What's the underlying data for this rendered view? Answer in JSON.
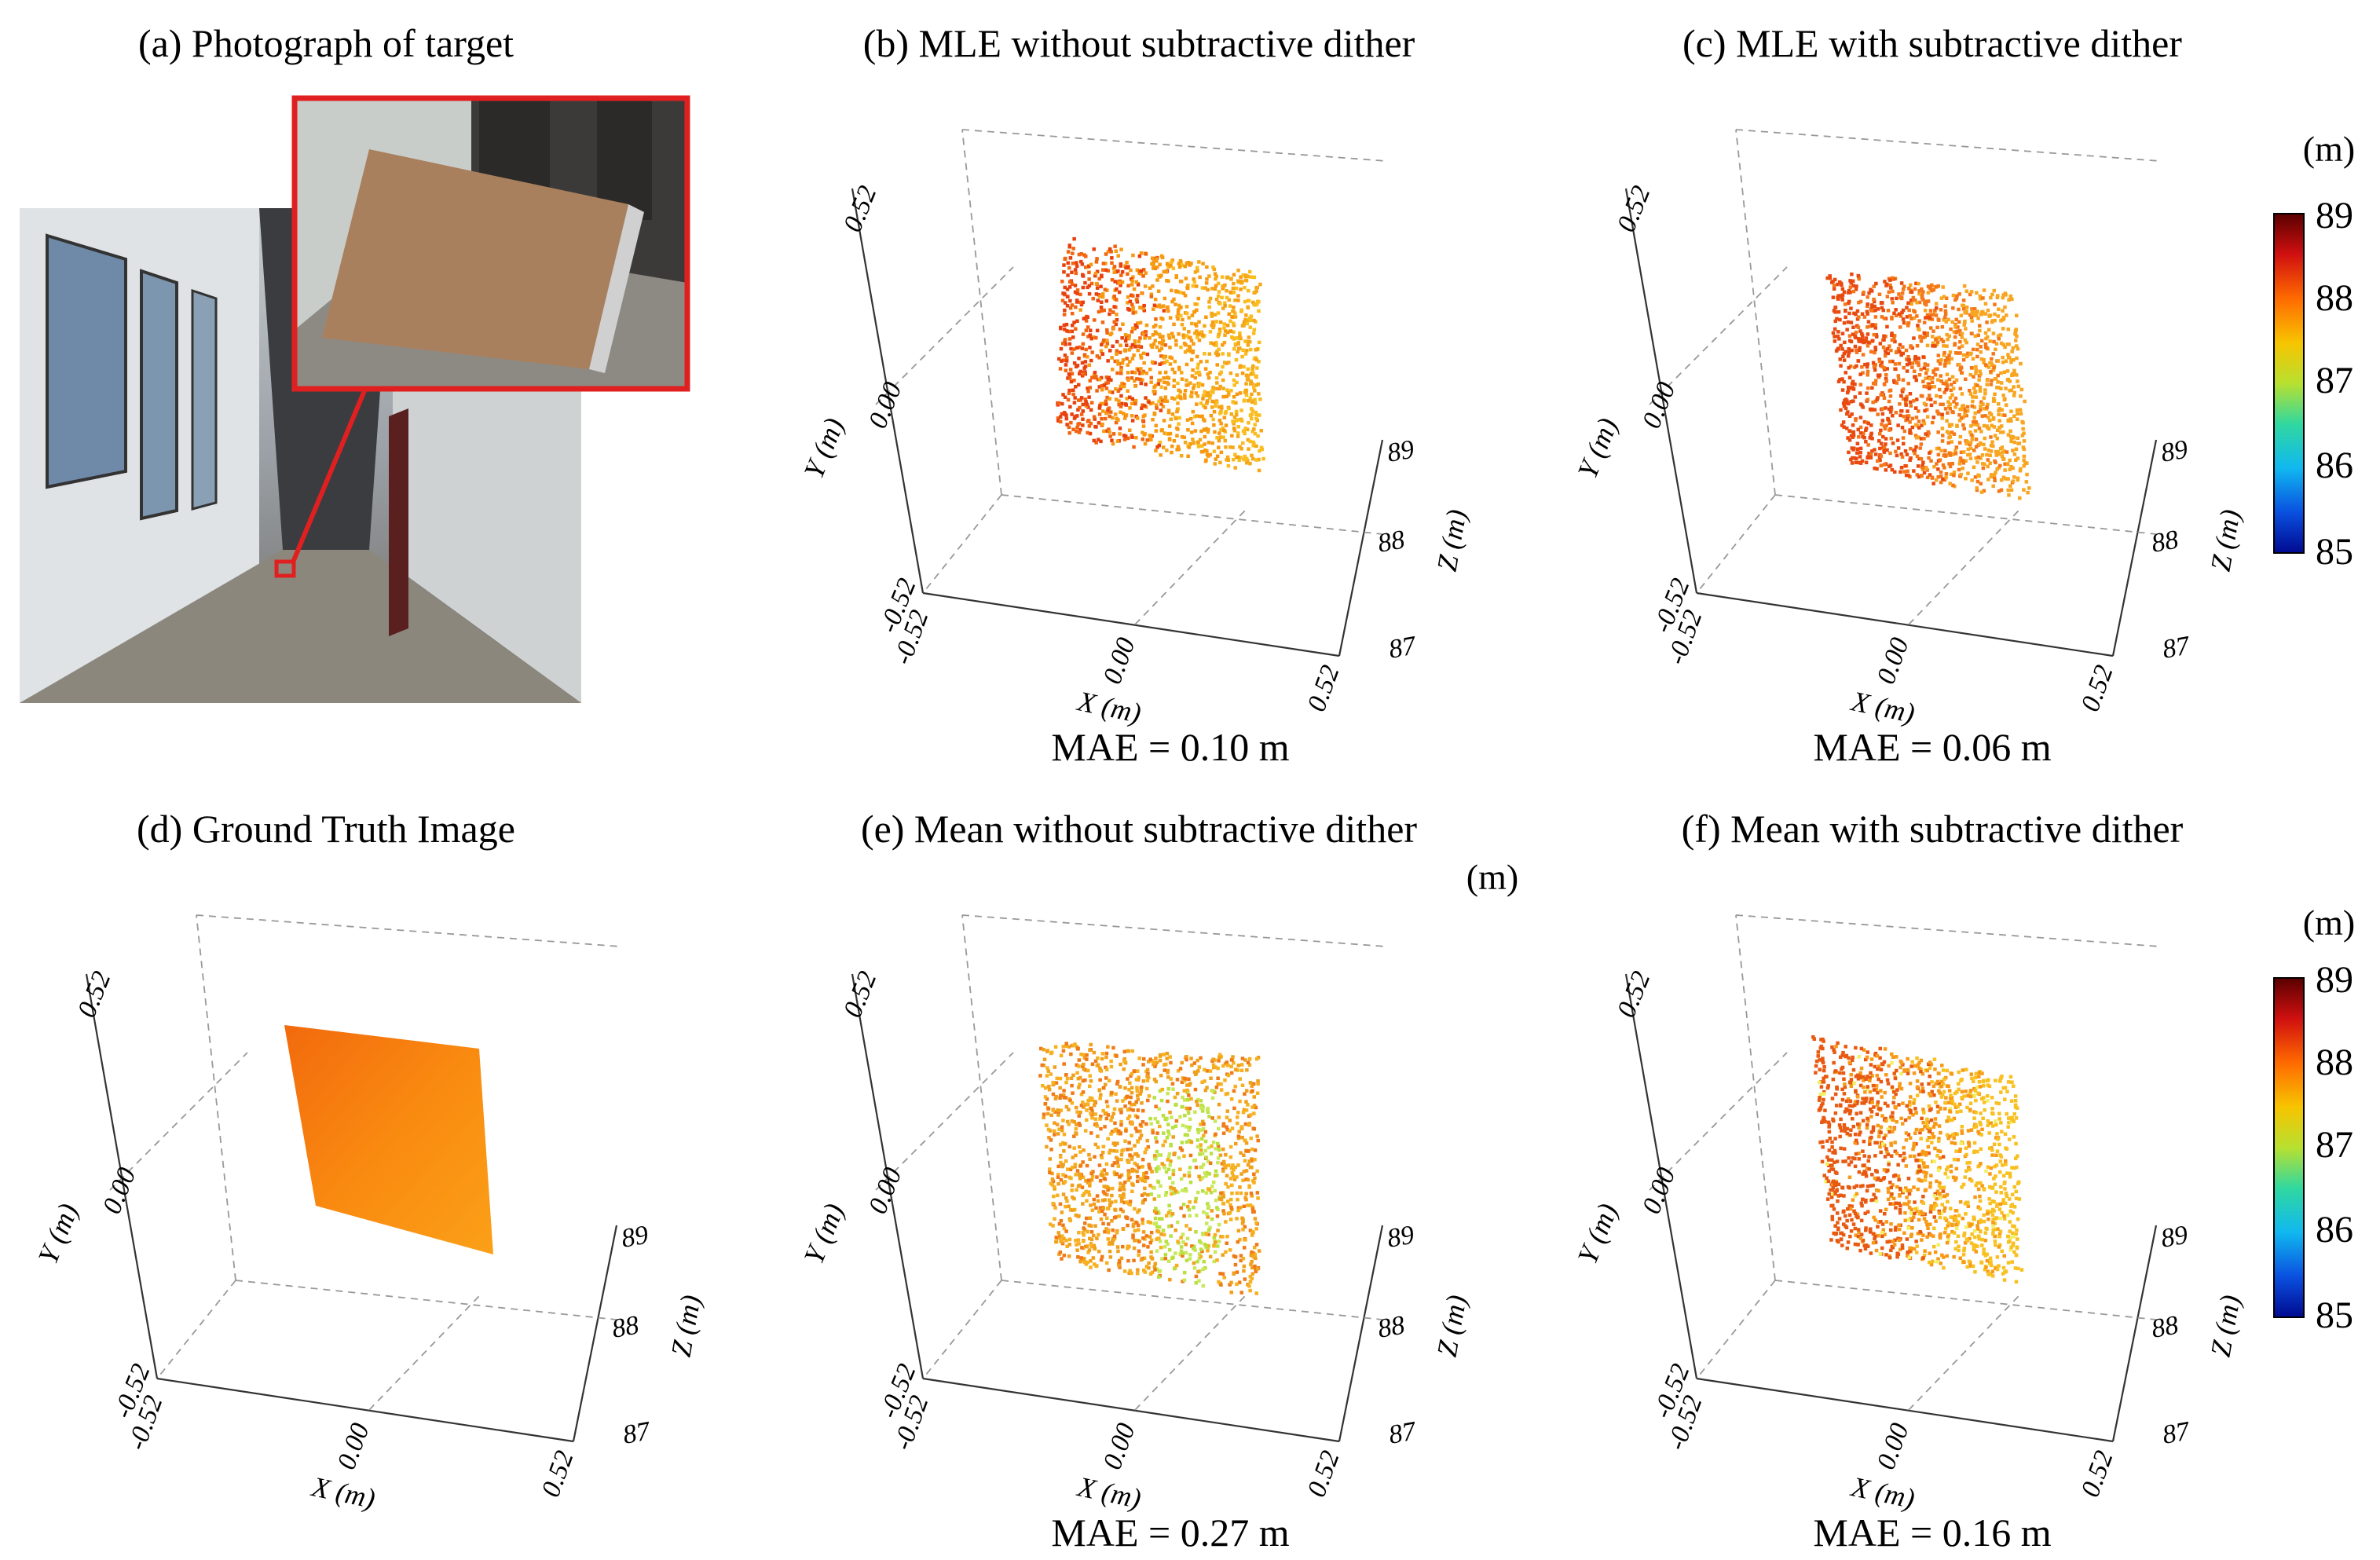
{
  "panels": [
    {
      "id": "a",
      "title": "(a) Photograph of target"
    },
    {
      "id": "b",
      "title": "(b) MLE without subtractive dither",
      "mae": "MAE = 0.10 m"
    },
    {
      "id": "c",
      "title": "(c) MLE with subtractive dither",
      "mae": "MAE = 0.06 m"
    },
    {
      "id": "d",
      "title": "(d) Ground Truth Image"
    },
    {
      "id": "e",
      "title": "(e) Mean without subtractive dither",
      "mae": "MAE = 0.27 m"
    },
    {
      "id": "f",
      "title": "(f) Mean with subtractive dither",
      "mae": "MAE = 0.16 m"
    }
  ],
  "axes": {
    "x_label": "X (m)",
    "y_label": "Y (m)",
    "z_label": "Z (m)",
    "x_ticks": [
      "-0.52",
      "0.00",
      "0.52"
    ],
    "y_ticks": [
      "-0.52",
      "0.00",
      "0.52"
    ],
    "z_ticks": [
      "87",
      "88",
      "89"
    ]
  },
  "colorbar": {
    "unit": "(m)",
    "ticks": [
      "89",
      "88",
      "87",
      "86",
      "85"
    ],
    "colors": [
      "#6b0000",
      "#d01010",
      "#ff7a00",
      "#f0d800",
      "#8ee040",
      "#10d8d0",
      "#0a78e8",
      "#0010a0"
    ]
  },
  "extra_unit_label": "(m)"
}
